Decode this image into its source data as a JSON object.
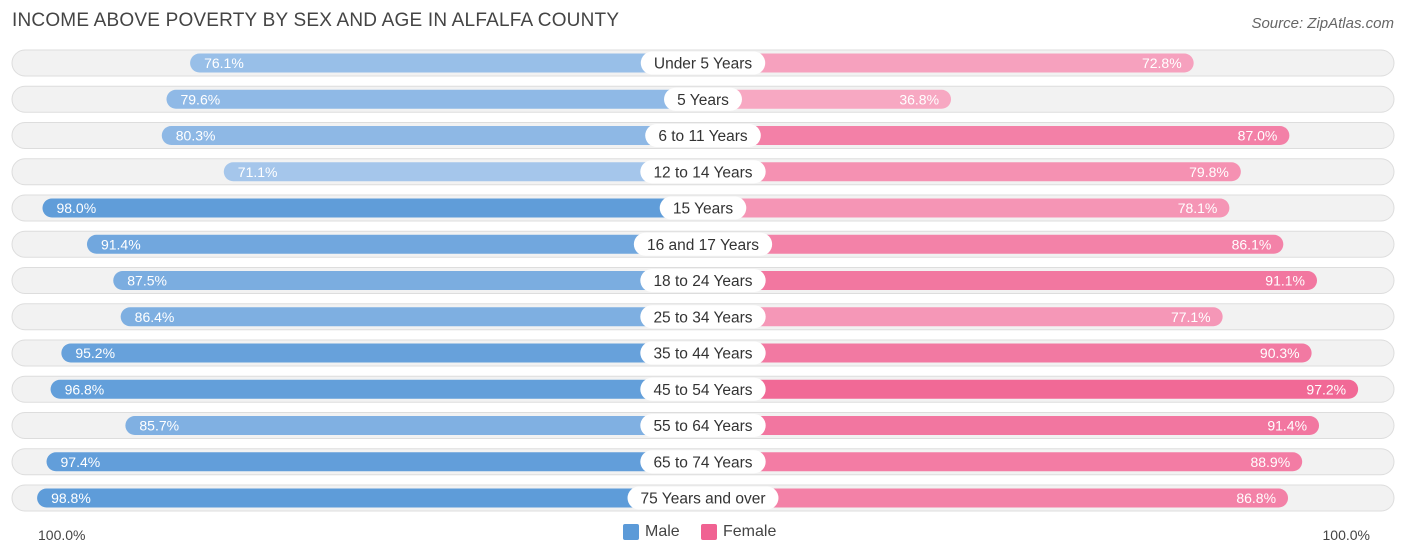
{
  "header": {
    "title": "INCOME ABOVE POVERTY BY SEX AND AGE IN ALFALFA COUNTY",
    "source": "Source: ZipAtlas.com"
  },
  "axis": {
    "left_label": "100.0%",
    "right_label": "100.0%"
  },
  "legend": {
    "male_label": "Male",
    "female_label": "Female"
  },
  "colors": {
    "male_light": "#a8c8ec",
    "male_dark": "#5b9ad8",
    "female_light": "#f7a8c2",
    "female_dark": "#f06292",
    "row_bg": "#f2f2f2",
    "row_border": "#dddddd"
  },
  "chart_data": {
    "type": "bar",
    "orientation": "horizontal-diverging",
    "xlim": [
      0,
      100
    ],
    "categories": [
      "Under 5 Years",
      "5 Years",
      "6 to 11 Years",
      "12 to 14 Years",
      "15 Years",
      "16 and 17 Years",
      "18 to 24 Years",
      "25 to 34 Years",
      "35 to 44 Years",
      "45 to 54 Years",
      "55 to 64 Years",
      "65 to 74 Years",
      "75 Years and over"
    ],
    "series": [
      {
        "name": "Male",
        "values": [
          76.1,
          79.6,
          80.3,
          71.1,
          98.0,
          91.4,
          87.5,
          86.4,
          95.2,
          96.8,
          85.7,
          97.4,
          98.8
        ]
      },
      {
        "name": "Female",
        "values": [
          72.8,
          36.8,
          87.0,
          79.8,
          78.1,
          86.1,
          91.1,
          77.1,
          90.3,
          97.2,
          91.4,
          88.9,
          86.8
        ]
      }
    ],
    "value_labels": {
      "male": [
        "76.1%",
        "79.6%",
        "80.3%",
        "71.1%",
        "98.0%",
        "91.4%",
        "87.5%",
        "86.4%",
        "95.2%",
        "96.8%",
        "85.7%",
        "97.4%",
        "98.8%"
      ],
      "female": [
        "72.8%",
        "36.8%",
        "87.0%",
        "79.8%",
        "78.1%",
        "86.1%",
        "91.1%",
        "77.1%",
        "90.3%",
        "97.2%",
        "91.4%",
        "88.9%",
        "86.8%"
      ]
    },
    "legend_position": "bottom-center"
  }
}
